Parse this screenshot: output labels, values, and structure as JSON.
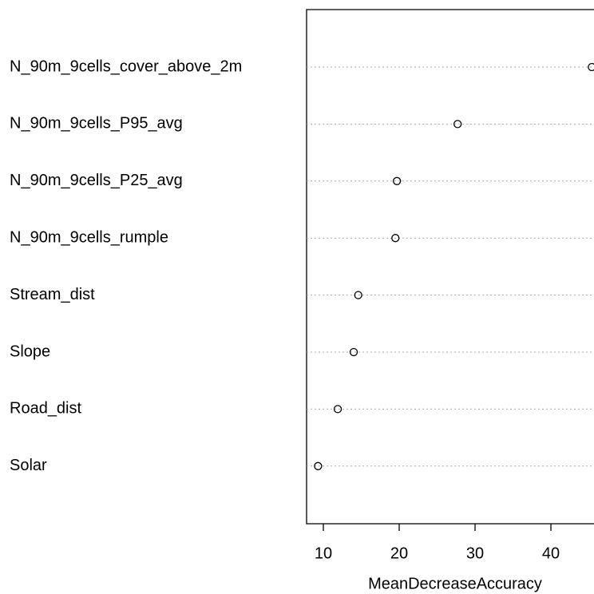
{
  "chart_data": {
    "type": "dot",
    "categories": [
      "N_90m_9cells_cover_above_2m",
      "N_90m_9cells_P95_avg",
      "N_90m_9cells_P25_avg",
      "N_90m_9cells_rumple",
      "Stream_dist",
      "Slope",
      "Road_dist",
      "Solar"
    ],
    "values": [
      45.4,
      27.7,
      19.7,
      19.5,
      14.6,
      14.0,
      11.9,
      9.3
    ],
    "xlim": [
      7.79,
      45.68
    ],
    "xticks": [
      10,
      20,
      30,
      40
    ],
    "xlabel": "MeanDecreaseAccuracy",
    "grid": true,
    "color": "#000000"
  }
}
